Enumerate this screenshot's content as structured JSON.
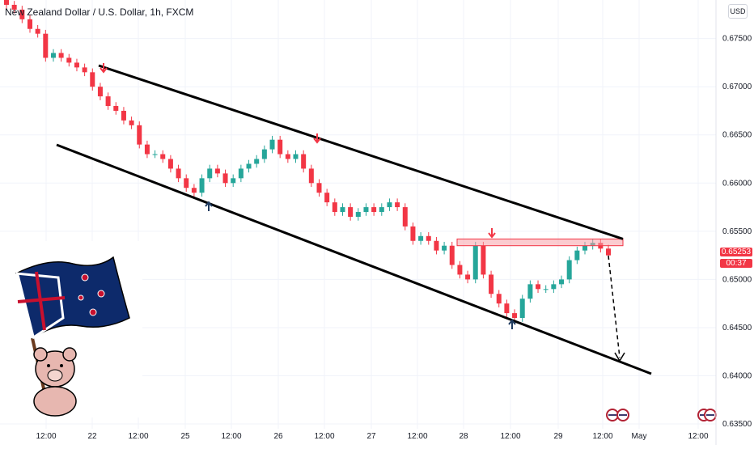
{
  "chart_data": {
    "type": "candlestick",
    "title": "New Zealand Dollar / U.S. Dollar, 1h, FXCM",
    "currency": "USD",
    "last_price": "0.65253",
    "countdown": "00:37",
    "y_ticks": [
      "0.67500",
      "0.67000",
      "0.66500",
      "0.66000",
      "0.65500",
      "0.65000",
      "0.64500",
      "0.64000",
      "0.63500"
    ],
    "x_ticks": [
      "12:00",
      "22",
      "12:00",
      "25",
      "12:00",
      "26",
      "12:00",
      "27",
      "12:00",
      "28",
      "12:00",
      "29",
      "12:00",
      "May",
      "12:00"
    ],
    "ylim": [
      0.6345,
      0.679
    ],
    "colors": {
      "up": "#26a69a",
      "down": "#f23645",
      "channel": "#000000",
      "zone": "#f7a1a7",
      "arrow_down": "#f23645",
      "arrow_up": "#1e3a5f"
    },
    "channel_upper": [
      [
        0.6722
      ],
      [
        0.6542
      ]
    ],
    "channel_lower": [
      [
        0.6645
      ],
      [
        0.64
      ]
    ],
    "zone": {
      "top": 0.6542,
      "bottom": 0.6535
    },
    "close_series": [
      0.6785,
      0.678,
      0.677,
      0.676,
      0.6755,
      0.673,
      0.6735,
      0.673,
      0.6725,
      0.672,
      0.6715,
      0.67,
      0.669,
      0.668,
      0.6675,
      0.6665,
      0.666,
      0.664,
      0.663,
      0.663,
      0.6625,
      0.6615,
      0.6605,
      0.6595,
      0.659,
      0.6605,
      0.6615,
      0.661,
      0.66,
      0.6605,
      0.6615,
      0.662,
      0.6625,
      0.6635,
      0.6645,
      0.663,
      0.6625,
      0.663,
      0.6615,
      0.66,
      0.659,
      0.658,
      0.657,
      0.6575,
      0.6565,
      0.657,
      0.6575,
      0.657,
      0.6575,
      0.658,
      0.6575,
      0.6555,
      0.654,
      0.6545,
      0.654,
      0.653,
      0.6535,
      0.6515,
      0.6505,
      0.65,
      0.6535,
      0.6505,
      0.6485,
      0.6475,
      0.6465,
      0.646,
      0.648,
      0.6495,
      0.649,
      0.649,
      0.6495,
      0.65,
      0.652,
      0.653,
      0.6535,
      0.6538,
      0.6532,
      0.6525
    ]
  }
}
